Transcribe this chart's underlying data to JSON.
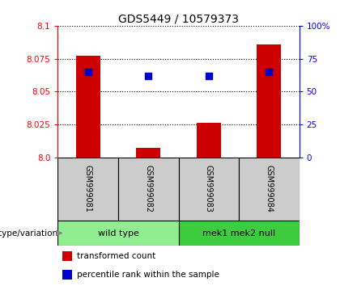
{
  "title": "GDS5449 / 10579373",
  "samples": [
    "GSM999081",
    "GSM999082",
    "GSM999083",
    "GSM999084"
  ],
  "transformed_counts": [
    8.077,
    8.007,
    8.026,
    8.086
  ],
  "percentile_pct": [
    65,
    62,
    62,
    65
  ],
  "ylim_left": [
    8.0,
    8.1
  ],
  "ylim_right": [
    0,
    100
  ],
  "yticks_left": [
    8.0,
    8.025,
    8.05,
    8.075,
    8.1
  ],
  "yticks_right": [
    0,
    25,
    50,
    75,
    100
  ],
  "groups": [
    {
      "label": "wild type",
      "indices": [
        0,
        1
      ],
      "color": "#90EE90"
    },
    {
      "label": "mek1 mek2 null",
      "indices": [
        2,
        3
      ],
      "color": "#3DCC3D"
    }
  ],
  "bar_color": "#CC0000",
  "dot_color": "#0000CC",
  "bar_width": 0.4,
  "dot_size": 35,
  "sample_box_color": "#CCCCCC",
  "genotype_label": "genotype/variation",
  "legend_entries": [
    {
      "color": "#CC0000",
      "label": "transformed count"
    },
    {
      "color": "#0000CC",
      "label": "percentile rank within the sample"
    }
  ]
}
